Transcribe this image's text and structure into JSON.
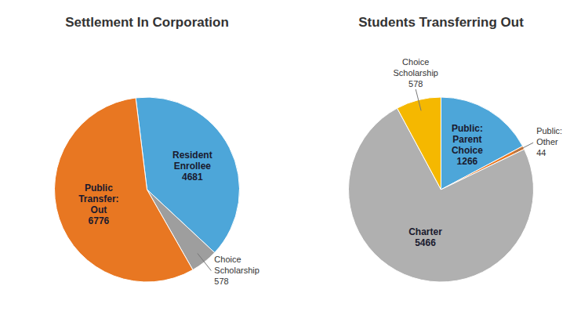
{
  "chart_data": [
    {
      "type": "pie",
      "title": "Settlement In Corporation",
      "categories": [
        "Resident\nEnrollee\n4681",
        "Choice\nScholarship\n578",
        "Public\nTransfer:\nOut\n6776"
      ],
      "values": [
        4681,
        578,
        6776
      ],
      "colors": [
        "#4da6d9",
        "#9e9e9e",
        "#e87722"
      ]
    },
    {
      "type": "pie",
      "title": "Students Transferring Out",
      "categories": [
        "Public:\nParent\nChoice\n1266",
        "Public:\nOther\n44",
        "Charter\n5466",
        "Choice\nScholarship\n578"
      ],
      "values": [
        1266,
        44,
        5466,
        578
      ],
      "colors": [
        "#4da6d9",
        "#e87722",
        "#b0b0b0",
        "#f5b800"
      ]
    }
  ]
}
